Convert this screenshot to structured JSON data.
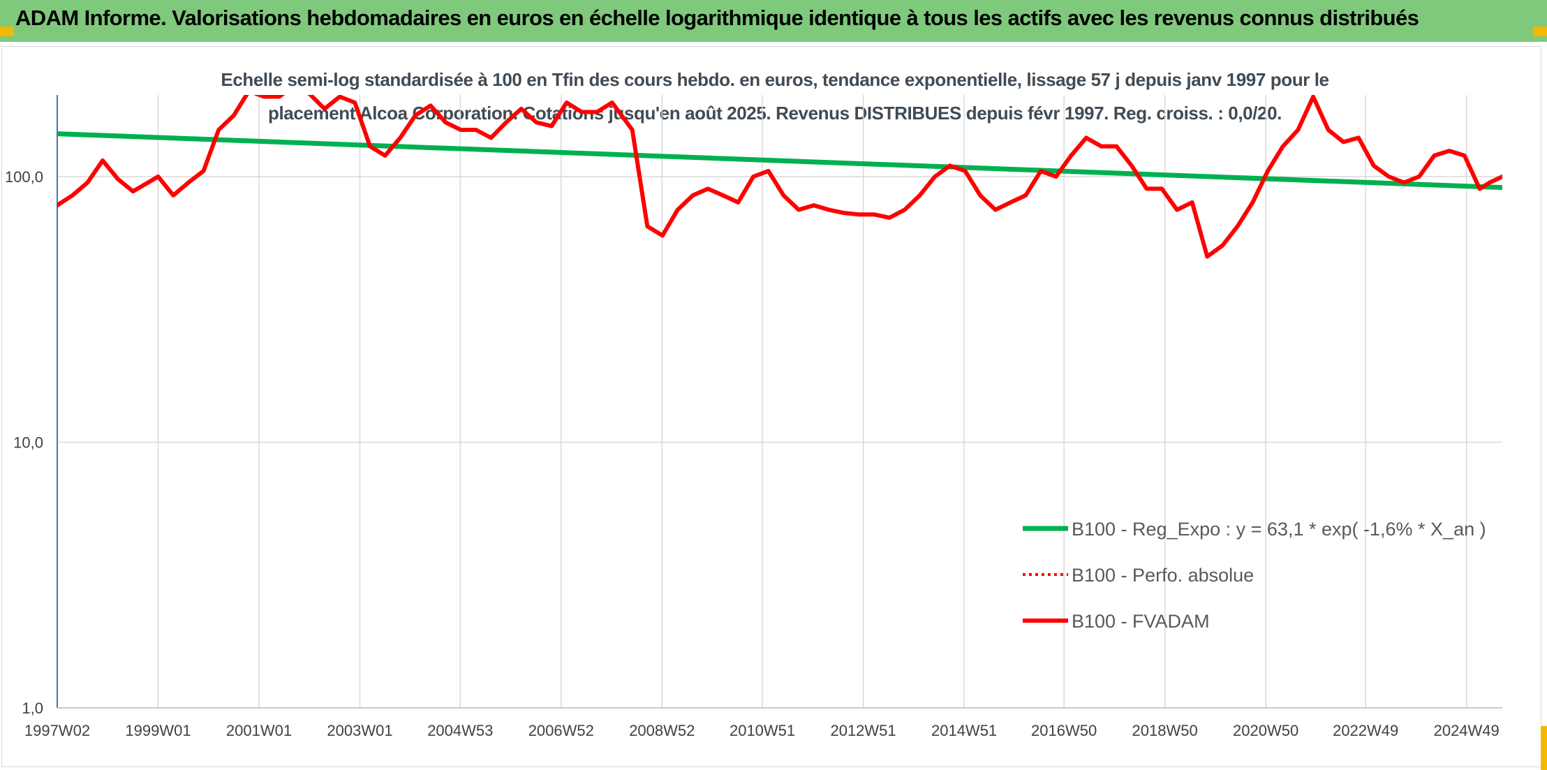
{
  "banner": {
    "title": "ADAM Informe. Valorisations hebdomadaires en euros en échelle logarithmique identique à tous les actifs avec les revenus connus distribués"
  },
  "colors": {
    "banner_bg": "#7ec97b",
    "accent_corner": "#f5b800",
    "trend_line": "#00b050",
    "price_line": "#ff0000",
    "grid": "#d9d9d9",
    "axis": "#4472c4",
    "text": "#404b55"
  },
  "chart_data": {
    "type": "line",
    "title_line1": "Echelle semi-log standardisée à 100 en Tfin des cours hebdo. en euros, tendance exponentielle, lissage 57 j depuis janv 1997 pour le",
    "title_line2": "placement Alcoa Corporation. Cotations jusqu'en août 2025. Revenus DISTRIBUES depuis févr 1997. Reg. croiss. : 0,0/20.",
    "y_scale": "log",
    "ylim": [
      1,
      200
    ],
    "y_ticks": [
      "1,0",
      "10,0",
      "100,0"
    ],
    "y_tick_values": [
      1,
      10,
      100
    ],
    "x_ticks": [
      "1997W02",
      "1999W01",
      "2001W01",
      "2003W01",
      "2004W53",
      "2006W52",
      "2008W52",
      "2010W51",
      "2012W51",
      "2014W51",
      "2016W50",
      "2018W50",
      "2020W50",
      "2022W49",
      "2024W49"
    ],
    "x_tick_years": [
      1997.0,
      1999.0,
      2001.0,
      2003.0,
      2004.99,
      2006.99,
      2008.99,
      2010.98,
      2012.98,
      2014.98,
      2016.96,
      2018.96,
      2020.96,
      2022.94,
      2024.94
    ],
    "xlim": [
      1997.0,
      2025.65
    ],
    "grid": true,
    "legend_position": "bottom-right",
    "series": [
      {
        "name": "B100 - Reg_Expo : y = 63,1 * exp( -1,6% *  X_an )",
        "style": "solid-thick",
        "x": [
          1997.0,
          2025.65
        ],
        "y": [
          145,
          91
        ]
      },
      {
        "name": "B100 - Perfo. absolue",
        "style": "dotted",
        "x": [],
        "y": []
      },
      {
        "name": "B100 - FVADAM",
        "style": "solid-thick",
        "x": [
          1997.0,
          1997.3,
          1997.6,
          1997.9,
          1998.2,
          1998.5,
          1998.8,
          1999.0,
          1999.3,
          1999.6,
          1999.9,
          2000.2,
          2000.5,
          2000.8,
          2001.1,
          2001.4,
          2001.7,
          2002.0,
          2002.3,
          2002.6,
          2002.9,
          2003.2,
          2003.5,
          2003.8,
          2004.1,
          2004.4,
          2004.7,
          2005.0,
          2005.3,
          2005.6,
          2005.9,
          2006.2,
          2006.5,
          2006.8,
          2007.1,
          2007.4,
          2007.7,
          2008.0,
          2008.4,
          2008.7,
          2009.0,
          2009.3,
          2009.6,
          2009.9,
          2010.2,
          2010.5,
          2010.8,
          2011.1,
          2011.4,
          2011.7,
          2012.0,
          2012.3,
          2012.6,
          2012.9,
          2013.2,
          2013.5,
          2013.8,
          2014.1,
          2014.4,
          2014.7,
          2015.0,
          2015.3,
          2015.6,
          2015.9,
          2016.2,
          2016.5,
          2016.8,
          2017.1,
          2017.4,
          2017.7,
          2018.0,
          2018.3,
          2018.6,
          2018.9,
          2019.2,
          2019.5,
          2019.8,
          2020.1,
          2020.4,
          2020.7,
          2021.0,
          2021.3,
          2021.6,
          2021.9,
          2022.2,
          2022.5,
          2022.8,
          2023.1,
          2023.4,
          2023.7,
          2024.0,
          2024.3,
          2024.6,
          2024.9,
          2025.2,
          2025.4,
          2025.65
        ],
        "y": [
          78,
          85,
          95,
          115,
          98,
          88,
          95,
          100,
          85,
          95,
          105,
          150,
          170,
          210,
          200,
          200,
          220,
          205,
          180,
          200,
          190,
          130,
          120,
          140,
          170,
          185,
          160,
          150,
          150,
          140,
          160,
          180,
          160,
          155,
          190,
          175,
          175,
          190,
          150,
          65,
          60,
          75,
          85,
          90,
          85,
          80,
          100,
          105,
          85,
          75,
          78,
          75,
          73,
          72,
          72,
          70,
          75,
          85,
          100,
          110,
          105,
          85,
          75,
          80,
          85,
          105,
          100,
          120,
          140,
          130,
          130,
          110,
          90,
          90,
          75,
          80,
          50,
          55,
          65,
          80,
          105,
          130,
          150,
          200,
          150,
          135,
          140,
          110,
          100,
          95,
          100,
          120,
          125,
          120,
          90,
          95,
          100
        ]
      }
    ]
  }
}
